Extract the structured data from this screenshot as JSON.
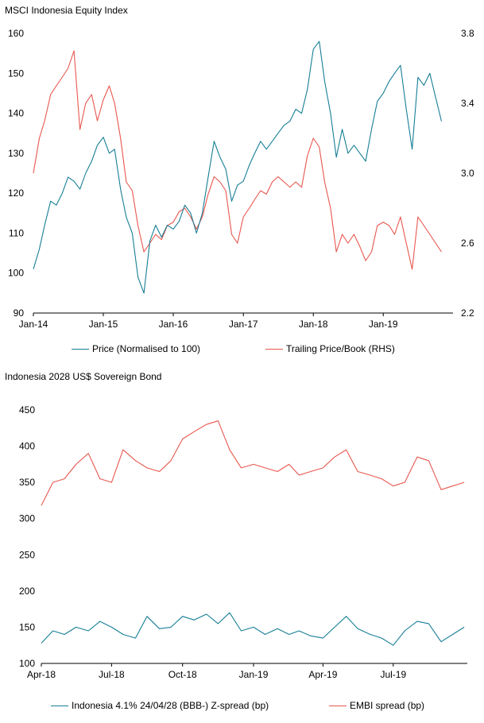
{
  "chart_data": [
    {
      "type": "line",
      "title": "MSCI Indonesia  Equity Index",
      "x_ticks": [
        "Jan-14",
        "Jan-15",
        "Jan-16",
        "Jan-17",
        "Jan-18",
        "Jan-19"
      ],
      "y_left": {
        "min": 90,
        "max": 160,
        "ticks": [
          90,
          100,
          110,
          120,
          130,
          140,
          150,
          160
        ]
      },
      "y_right": {
        "min": 2.2,
        "max": 3.8,
        "ticks": [
          "2.2",
          "2.6",
          "3.0",
          "3.4",
          "3.8"
        ]
      },
      "grid": false,
      "legend": "bottom",
      "series": [
        {
          "name": "Price (Normalised to 100)",
          "axis": "left",
          "color": "#177e96",
          "x": [
            "2014-01",
            "2014-02",
            "2014-03",
            "2014-04",
            "2014-05",
            "2014-06",
            "2014-07",
            "2014-08",
            "2014-09",
            "2014-10",
            "2014-11",
            "2014-12",
            "2015-01",
            "2015-02",
            "2015-03",
            "2015-04",
            "2015-05",
            "2015-06",
            "2015-07",
            "2015-08",
            "2015-09",
            "2015-10",
            "2015-11",
            "2015-12",
            "2016-01",
            "2016-02",
            "2016-03",
            "2016-04",
            "2016-05",
            "2016-06",
            "2016-07",
            "2016-08",
            "2016-09",
            "2016-10",
            "2016-11",
            "2016-12",
            "2017-01",
            "2017-02",
            "2017-03",
            "2017-04",
            "2017-05",
            "2017-06",
            "2017-07",
            "2017-08",
            "2017-09",
            "2017-10",
            "2017-11",
            "2017-12",
            "2018-01",
            "2018-02",
            "2018-03",
            "2018-04",
            "2018-05",
            "2018-06",
            "2018-07",
            "2018-08",
            "2018-09",
            "2018-10",
            "2018-11",
            "2018-12",
            "2019-01",
            "2019-02",
            "2019-03",
            "2019-04",
            "2019-05",
            "2019-06",
            "2019-07",
            "2019-08",
            "2019-09",
            "2019-10",
            "2019-11"
          ],
          "values": [
            101,
            106,
            112,
            118,
            117,
            120,
            124,
            123,
            121,
            125,
            128,
            132,
            134,
            130,
            131,
            121,
            114,
            110,
            99,
            95,
            108,
            112,
            109,
            112,
            111,
            113,
            117,
            115,
            110,
            115,
            124,
            133,
            129,
            126,
            118,
            122,
            123,
            127,
            130,
            133,
            131,
            133,
            135,
            137,
            138,
            141,
            140,
            146,
            156,
            158,
            148,
            140,
            129,
            136,
            130,
            132,
            130,
            128,
            136,
            143,
            145,
            148,
            150,
            152,
            141,
            131,
            149,
            147,
            150,
            144,
            138
          ]
        },
        {
          "name": "Trailing Price/Book (RHS)",
          "axis": "right",
          "color": "#e8574f",
          "x": [
            "2014-01",
            "2014-02",
            "2014-03",
            "2014-04",
            "2014-05",
            "2014-06",
            "2014-07",
            "2014-08",
            "2014-09",
            "2014-10",
            "2014-11",
            "2014-12",
            "2015-01",
            "2015-02",
            "2015-03",
            "2015-04",
            "2015-05",
            "2015-06",
            "2015-07",
            "2015-08",
            "2015-09",
            "2015-10",
            "2015-11",
            "2015-12",
            "2016-01",
            "2016-02",
            "2016-03",
            "2016-04",
            "2016-05",
            "2016-06",
            "2016-07",
            "2016-08",
            "2016-09",
            "2016-10",
            "2016-11",
            "2016-12",
            "2017-01",
            "2017-02",
            "2017-03",
            "2017-04",
            "2017-05",
            "2017-06",
            "2017-07",
            "2017-08",
            "2017-09",
            "2017-10",
            "2017-11",
            "2017-12",
            "2018-01",
            "2018-02",
            "2018-03",
            "2018-04",
            "2018-05",
            "2018-06",
            "2018-07",
            "2018-08",
            "2018-09",
            "2018-10",
            "2018-11",
            "2018-12",
            "2019-01",
            "2019-02",
            "2019-03",
            "2019-04",
            "2019-05",
            "2019-06",
            "2019-07",
            "2019-08",
            "2019-09",
            "2019-10",
            "2019-11"
          ],
          "values": [
            3.0,
            3.2,
            3.3,
            3.45,
            3.5,
            3.55,
            3.6,
            3.7,
            3.25,
            3.4,
            3.45,
            3.3,
            3.42,
            3.5,
            3.4,
            3.2,
            2.95,
            2.9,
            2.7,
            2.55,
            2.6,
            2.65,
            2.62,
            2.7,
            2.72,
            2.78,
            2.8,
            2.75,
            2.68,
            2.75,
            2.88,
            2.98,
            2.95,
            2.9,
            2.65,
            2.6,
            2.75,
            2.8,
            2.85,
            2.9,
            2.88,
            2.95,
            2.98,
            2.95,
            2.92,
            2.95,
            2.92,
            3.1,
            3.2,
            3.15,
            2.95,
            2.8,
            2.55,
            2.65,
            2.6,
            2.65,
            2.58,
            2.5,
            2.55,
            2.7,
            2.72,
            2.7,
            2.65,
            2.75,
            2.6,
            2.45,
            2.75,
            2.7,
            2.65,
            2.6,
            2.55
          ]
        }
      ]
    },
    {
      "type": "line",
      "title": "Indonesia  2028 US$ Sovereign  Bond",
      "x_ticks": [
        "Apr-18",
        "Jul-18",
        "Oct-18",
        "Jan-19",
        "Apr-19",
        "Jul-19"
      ],
      "y": {
        "min": 100,
        "max": 450,
        "ticks": [
          100,
          150,
          200,
          250,
          300,
          350,
          400,
          450
        ]
      },
      "grid": false,
      "legend": "bottom",
      "series": [
        {
          "name": "Indonesia 4.1% 24/04/28 (BBB-) Z-spread (bp)",
          "color": "#177e96",
          "x": [
            "2018-04-01",
            "2018-04-16",
            "2018-05-01",
            "2018-05-16",
            "2018-06-01",
            "2018-06-16",
            "2018-07-01",
            "2018-07-16",
            "2018-08-01",
            "2018-08-16",
            "2018-09-01",
            "2018-09-16",
            "2018-10-01",
            "2018-10-16",
            "2018-11-01",
            "2018-11-16",
            "2018-12-01",
            "2018-12-16",
            "2019-01-01",
            "2019-01-16",
            "2019-02-01",
            "2019-02-16",
            "2019-03-01",
            "2019-03-16",
            "2019-04-01",
            "2019-04-16",
            "2019-05-01",
            "2019-05-16",
            "2019-06-01",
            "2019-06-16",
            "2019-07-01",
            "2019-07-16",
            "2019-08-01",
            "2019-08-16",
            "2019-09-01",
            "2019-09-16",
            "2019-10-01"
          ],
          "values": [
            128,
            145,
            140,
            150,
            145,
            158,
            150,
            140,
            135,
            165,
            148,
            150,
            165,
            160,
            168,
            155,
            170,
            145,
            150,
            140,
            148,
            140,
            145,
            138,
            135,
            150,
            165,
            148,
            140,
            135,
            125,
            145,
            158,
            155,
            130,
            140,
            150
          ]
        },
        {
          "name": "EMBI spread (bp)",
          "color": "#e8574f",
          "x": [
            "2018-04-01",
            "2018-04-16",
            "2018-05-01",
            "2018-05-16",
            "2018-06-01",
            "2018-06-16",
            "2018-07-01",
            "2018-07-16",
            "2018-08-01",
            "2018-08-16",
            "2018-09-01",
            "2018-09-16",
            "2018-10-01",
            "2018-10-16",
            "2018-11-01",
            "2018-11-16",
            "2018-12-01",
            "2018-12-16",
            "2019-01-01",
            "2019-01-16",
            "2019-02-01",
            "2019-02-16",
            "2019-03-01",
            "2019-03-16",
            "2019-04-01",
            "2019-04-16",
            "2019-05-01",
            "2019-05-16",
            "2019-06-01",
            "2019-06-16",
            "2019-07-01",
            "2019-07-16",
            "2019-08-01",
            "2019-08-16",
            "2019-09-01",
            "2019-09-16",
            "2019-10-01"
          ],
          "values": [
            318,
            350,
            355,
            375,
            390,
            355,
            350,
            395,
            380,
            370,
            365,
            380,
            410,
            420,
            430,
            435,
            395,
            370,
            375,
            370,
            365,
            375,
            360,
            365,
            370,
            385,
            395,
            365,
            360,
            355,
            345,
            350,
            385,
            380,
            340,
            345,
            350
          ]
        }
      ]
    }
  ]
}
